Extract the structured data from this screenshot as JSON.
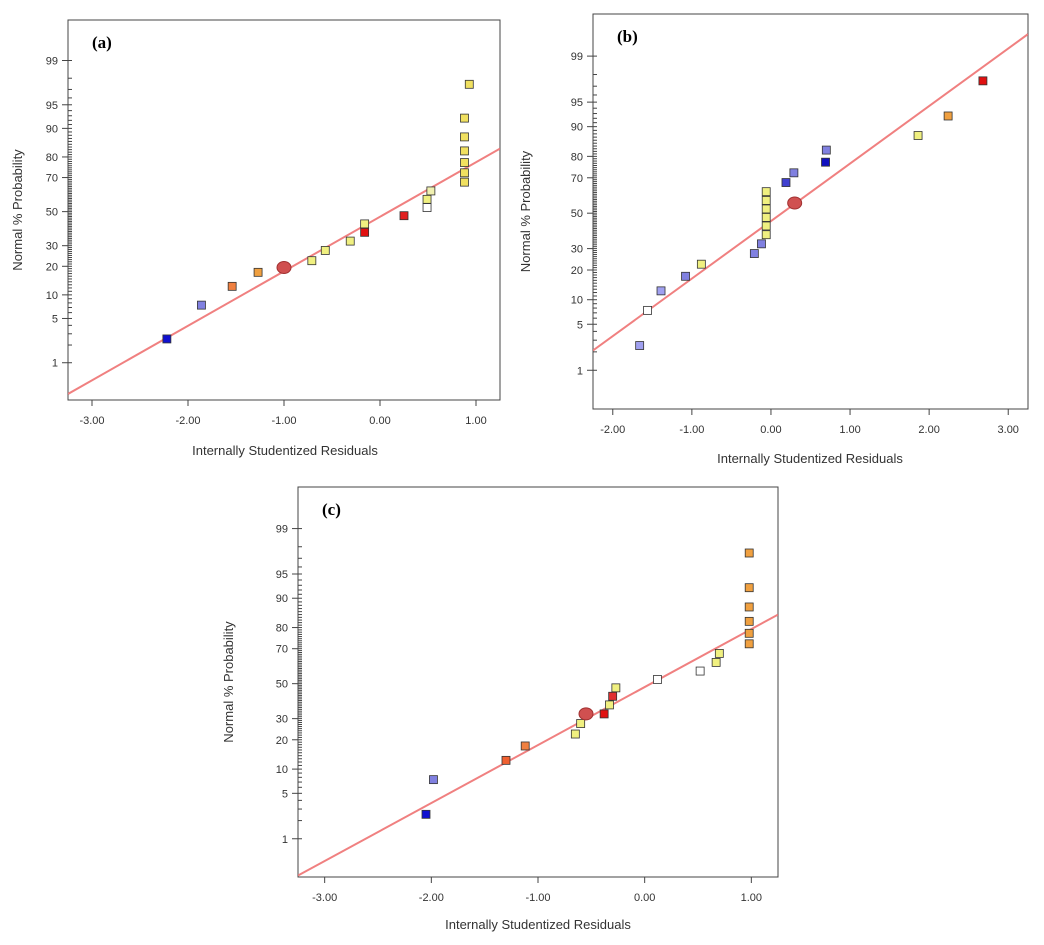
{
  "chart_data": [
    {
      "type": "scatter",
      "panel": "(a)",
      "xlabel": "Internally Studentized Residuals",
      "ylabel": "Normal % Probability",
      "x_ticks": [
        "-3.00",
        "-2.00",
        "-1.00",
        "0.00",
        "1.00"
      ],
      "x_tick_values": [
        -3,
        -2,
        -1,
        0,
        1
      ],
      "xlim": [
        -3.25,
        1.25
      ],
      "y_ticks": [
        "1",
        "5",
        "10",
        "20",
        "30",
        "50",
        "70",
        "80",
        "90",
        "95",
        "99"
      ],
      "y_tick_values": [
        1,
        5,
        10,
        20,
        30,
        50,
        70,
        80,
        90,
        95,
        99
      ],
      "ylim_z": [
        -2.9,
        2.95
      ],
      "reference_line": [
        [
          -3.25,
          0.25
        ],
        [
          1.25,
          83.4
        ]
      ],
      "center_point": {
        "x": -1.0,
        "y": 19.5
      },
      "points": [
        {
          "x": -2.22,
          "y": 2.5,
          "color": "#1010d0"
        },
        {
          "x": -1.86,
          "y": 7.5,
          "color": "#8080e0"
        },
        {
          "x": -1.54,
          "y": 12.5,
          "color": "#f08040"
        },
        {
          "x": -1.27,
          "y": 17.5,
          "color": "#f0a040"
        },
        {
          "x": -0.71,
          "y": 22.5,
          "color": "#f0f080"
        },
        {
          "x": -0.57,
          "y": 27.5,
          "color": "#f0f080"
        },
        {
          "x": -0.31,
          "y": 32.5,
          "color": "#f0f080"
        },
        {
          "x": -0.16,
          "y": 37.5,
          "color": "#e01010"
        },
        {
          "x": -0.16,
          "y": 42.5,
          "color": "#f0f080"
        },
        {
          "x": 0.25,
          "y": 47.5,
          "color": "#e02020"
        },
        {
          "x": 0.49,
          "y": 52.5,
          "color": "#ffffff"
        },
        {
          "x": 0.49,
          "y": 57.5,
          "color": "#f0f080"
        },
        {
          "x": 0.53,
          "y": 62.5,
          "color": "#f0f0b0"
        },
        {
          "x": 0.88,
          "y": 67.5,
          "color": "#f0e060"
        },
        {
          "x": 0.88,
          "y": 72.5,
          "color": "#f0e060"
        },
        {
          "x": 0.88,
          "y": 77.5,
          "color": "#f0e060"
        },
        {
          "x": 0.88,
          "y": 82.5,
          "color": "#f0e060"
        },
        {
          "x": 0.88,
          "y": 87.5,
          "color": "#f0e060"
        },
        {
          "x": 0.88,
          "y": 92.5,
          "color": "#f0e060"
        },
        {
          "x": 0.93,
          "y": 97.5,
          "color": "#f0e060"
        }
      ]
    },
    {
      "type": "scatter",
      "panel": "(b)",
      "xlabel": "Internally Studentized Residuals",
      "ylabel": "Normal % Probability",
      "x_ticks": [
        "-2.00",
        "-1.00",
        "0.00",
        "1.00",
        "2.00",
        "3.00"
      ],
      "x_tick_values": [
        -2,
        -1,
        0,
        1,
        2,
        3
      ],
      "xlim": [
        -2.25,
        3.25
      ],
      "y_ticks": [
        "1",
        "5",
        "10",
        "20",
        "30",
        "50",
        "70",
        "80",
        "90",
        "95",
        "99"
      ],
      "y_tick_values": [
        1,
        5,
        10,
        20,
        30,
        50,
        70,
        80,
        90,
        95,
        99
      ],
      "ylim_z": [
        -2.9,
        2.95
      ],
      "reference_line": [
        [
          -2.25,
          2.1
        ],
        [
          3.25,
          99.6
        ]
      ],
      "center_point": {
        "x": 0.3,
        "y": 56
      },
      "points": [
        {
          "x": -1.66,
          "y": 2.5,
          "color": "#a0a0f0"
        },
        {
          "x": -1.56,
          "y": 7.5,
          "color": "#ffffff"
        },
        {
          "x": -1.39,
          "y": 12.5,
          "color": "#a0a0f0"
        },
        {
          "x": -1.08,
          "y": 17.5,
          "color": "#8080e0"
        },
        {
          "x": -0.88,
          "y": 22.5,
          "color": "#f0f080"
        },
        {
          "x": -0.21,
          "y": 27.5,
          "color": "#8080e0"
        },
        {
          "x": -0.12,
          "y": 32.5,
          "color": "#8080e0"
        },
        {
          "x": -0.06,
          "y": 37.5,
          "color": "#f0f080"
        },
        {
          "x": -0.06,
          "y": 42.5,
          "color": "#f0f080"
        },
        {
          "x": -0.06,
          "y": 47.5,
          "color": "#f0f080"
        },
        {
          "x": -0.06,
          "y": 52.5,
          "color": "#f0f080"
        },
        {
          "x": -0.06,
          "y": 57.5,
          "color": "#f0f080"
        },
        {
          "x": -0.06,
          "y": 62.5,
          "color": "#f0f080"
        },
        {
          "x": 0.19,
          "y": 67.5,
          "color": "#4040d0"
        },
        {
          "x": 0.29,
          "y": 72.5,
          "color": "#8080e0"
        },
        {
          "x": 0.69,
          "y": 77.5,
          "color": "#1010c0"
        },
        {
          "x": 0.7,
          "y": 82.5,
          "color": "#8080e0"
        },
        {
          "x": 1.86,
          "y": 87.5,
          "color": "#f0f080"
        },
        {
          "x": 2.24,
          "y": 92.5,
          "color": "#f0a040"
        },
        {
          "x": 2.68,
          "y": 97.5,
          "color": "#e01010"
        }
      ]
    },
    {
      "type": "scatter",
      "panel": "(c)",
      "xlabel": "Internally Studentized Residuals",
      "ylabel": "Normal % Probability",
      "x_ticks": [
        "-3.00",
        "-2.00",
        "-1.00",
        "0.00",
        "1.00"
      ],
      "x_tick_values": [
        -3,
        -2,
        -1,
        0,
        1
      ],
      "xlim": [
        -3.25,
        1.25
      ],
      "y_ticks": [
        "1",
        "5",
        "10",
        "20",
        "30",
        "50",
        "70",
        "80",
        "90",
        "95",
        "99"
      ],
      "y_tick_values": [
        1,
        5,
        10,
        20,
        30,
        50,
        70,
        80,
        90,
        95,
        99
      ],
      "ylim_z": [
        -2.9,
        2.95
      ],
      "reference_line": [
        [
          -3.25,
          0.2
        ],
        [
          1.25,
          85
        ]
      ],
      "center_point": {
        "x": -0.55,
        "y": 32.5
      },
      "points": [
        {
          "x": -2.05,
          "y": 2.5,
          "color": "#1010d0"
        },
        {
          "x": -1.98,
          "y": 7.5,
          "color": "#8080e0"
        },
        {
          "x": -1.3,
          "y": 12.5,
          "color": "#f06030"
        },
        {
          "x": -1.12,
          "y": 17.5,
          "color": "#f08040"
        },
        {
          "x": -0.65,
          "y": 22.5,
          "color": "#f0f080"
        },
        {
          "x": -0.6,
          "y": 27.5,
          "color": "#f0f080"
        },
        {
          "x": -0.38,
          "y": 32.5,
          "color": "#e01010"
        },
        {
          "x": -0.33,
          "y": 37.5,
          "color": "#f0f080"
        },
        {
          "x": -0.3,
          "y": 42.5,
          "color": "#e03030"
        },
        {
          "x": -0.27,
          "y": 47.5,
          "color": "#f0f080"
        },
        {
          "x": 0.12,
          "y": 52.5,
          "color": "#ffffff"
        },
        {
          "x": 0.52,
          "y": 57.5,
          "color": "#ffffff"
        },
        {
          "x": 0.67,
          "y": 62.5,
          "color": "#f0f080"
        },
        {
          "x": 0.7,
          "y": 67.5,
          "color": "#f0f080"
        },
        {
          "x": 0.98,
          "y": 72.5,
          "color": "#f0a040"
        },
        {
          "x": 0.98,
          "y": 77.5,
          "color": "#f0a040"
        },
        {
          "x": 0.98,
          "y": 82.5,
          "color": "#f0a040"
        },
        {
          "x": 0.98,
          "y": 87.5,
          "color": "#f0a040"
        },
        {
          "x": 0.98,
          "y": 92.5,
          "color": "#f0a040"
        },
        {
          "x": 0.98,
          "y": 97.5,
          "color": "#f0a040"
        }
      ]
    }
  ]
}
